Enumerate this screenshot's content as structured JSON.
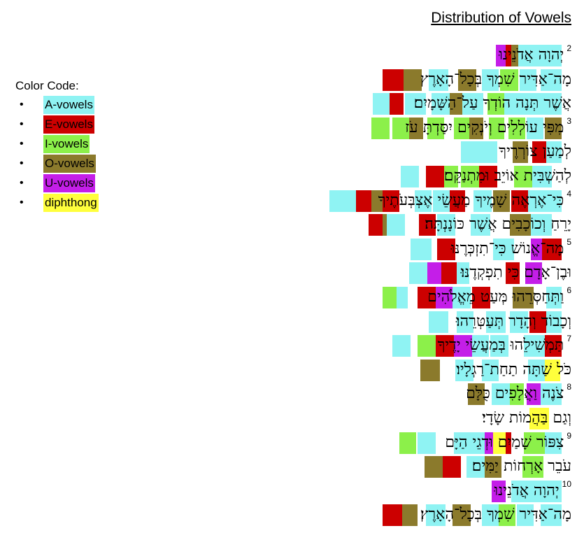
{
  "title": "Distribution of Vowels",
  "legend": {
    "title": "Color Code:",
    "bullet": "•",
    "items": [
      {
        "label": "A-vowels",
        "color": "#8ff3f3"
      },
      {
        "label": "E-vowels",
        "color": "#cc0000"
      },
      {
        "label": "I-vowels",
        "color": "#8cf04a"
      },
      {
        "label": "O-vowels",
        "color": "#8b7a2c"
      },
      {
        "label": "U-vowels",
        "color": "#c41ee8"
      },
      {
        "label": "diphthong",
        "color": "#ffff3c"
      }
    ]
  },
  "verses": [
    {
      "num": "2",
      "text": "יְהוָה אֲדֹנֵינוּ",
      "hl": [
        [
          "A",
          0,
          30
        ],
        [
          "A",
          30,
          38
        ],
        [
          "O",
          62,
          10
        ],
        [
          "E",
          72,
          8
        ],
        [
          "U",
          80,
          14
        ]
      ]
    },
    {
      "num": "",
      "text": "מָה־אַדִּיר שִׁמְךָ בְּכָל־הָאָרֶץ",
      "hl": [
        [
          "A",
          0,
          30
        ],
        [
          "A",
          36,
          24
        ],
        [
          "I",
          62,
          26
        ],
        [
          "A",
          90,
          24
        ],
        [
          "O",
          122,
          26
        ],
        [
          "A",
          162,
          28
        ],
        [
          "O",
          200,
          28
        ],
        [
          "E",
          226,
          30
        ]
      ]
    },
    {
      "num": "",
      "text": "אֲשֶׁר תְּנָה הוֹדְךָ עַל־הַשָּׁמָיִם׃",
      "hl": [
        [
          "A",
          0,
          28
        ],
        [
          "A",
          28,
          34
        ],
        [
          "A",
          62,
          20
        ],
        [
          "I",
          82,
          24
        ],
        [
          "A",
          112,
          30
        ],
        [
          "O",
          142,
          30
        ],
        [
          "A",
          160,
          26
        ],
        [
          "A",
          194,
          30
        ],
        [
          "E",
          226,
          20
        ],
        [
          "A",
          246,
          24
        ]
      ]
    },
    {
      "num": "3",
      "text": "מִפִּי עוֹלְלִים וְיֹנְקִים יִסַּדְתָּ עֹז",
      "hl": [
        [
          "O",
          0,
          24
        ],
        [
          "A",
          26,
          24
        ],
        [
          "I",
          52,
          24
        ],
        [
          "I",
          82,
          22
        ],
        [
          "O",
          112,
          22
        ],
        [
          "I",
          132,
          22
        ],
        [
          "I",
          168,
          24
        ],
        [
          "O",
          198,
          20
        ],
        [
          "I",
          218,
          24
        ],
        [
          "I",
          246,
          26
        ]
      ]
    },
    {
      "num": "",
      "text": "לְמַעַן צוֹרְרֶיךָ",
      "hl": [
        [
          "A",
          0,
          22
        ],
        [
          "E",
          22,
          20
        ],
        [
          "O",
          48,
          22
        ],
        [
          "A",
          92,
          30
        ],
        [
          "A",
          122,
          22
        ]
      ]
    },
    {
      "num": "",
      "text": "לְהַשְׁבִּית אוֹיֵב וּמִתְנַקֵּם׃",
      "hl": [
        [
          "A",
          14,
          28
        ],
        [
          "I",
          42,
          26
        ],
        [
          "E",
          92,
          26
        ],
        [
          "I",
          118,
          26
        ],
        [
          "I",
          148,
          28
        ],
        [
          "E",
          168,
          26
        ],
        [
          "A",
          204,
          26
        ]
      ]
    },
    {
      "num": "4",
      "text": "כִּי־אֶרְאֶה שָׁמֶיךָ מַעֲשֵׂי אֶצְבְּעֹתֶיךָ",
      "hl": [
        [
          "A",
          0,
          28
        ],
        [
          "A",
          28,
          20
        ],
        [
          "E",
          48,
          24
        ],
        [
          "O",
          74,
          24
        ],
        [
          "A",
          100,
          26
        ],
        [
          "E",
          138,
          24
        ],
        [
          "A",
          160,
          24
        ],
        [
          "A",
          186,
          24
        ],
        [
          "E",
          232,
          24
        ],
        [
          "O",
          256,
          22
        ],
        [
          "E",
          272,
          22
        ],
        [
          "A",
          294,
          24
        ],
        [
          "A",
          318,
          14
        ]
      ]
    },
    {
      "num": "",
      "text": "יָרֵחַ וְכוֹכָבִים אֲשֶׁר כּוֹנָנְתָּה׃",
      "hl": [
        [
          "A",
          14,
          30
        ],
        [
          "O",
          44,
          30
        ],
        [
          "A",
          102,
          28
        ],
        [
          "A",
          152,
          26
        ],
        [
          "E",
          180,
          24
        ],
        [
          "A",
          224,
          26
        ],
        [
          "O",
          250,
          20
        ],
        [
          "E",
          256,
          20
        ]
      ]
    },
    {
      "num": "5",
      "text": "מָה־אֱנוֹשׁ כִּי־תִזְכְּרֶנּוּ",
      "hl": [
        [
          "E",
          0,
          28
        ],
        [
          "U",
          28,
          16
        ],
        [
          "A",
          68,
          30
        ],
        [
          "E",
          152,
          26
        ],
        [
          "A",
          186,
          30
        ]
      ]
    },
    {
      "num": "",
      "text": "וּבֶן־אָדָם כִּי תִפְקְדֶנּוּ׃",
      "hl": [
        [
          "U",
          28,
          24
        ],
        [
          "E",
          60,
          20
        ],
        [
          "A",
          132,
          28
        ],
        [
          "E",
          150,
          24
        ],
        [
          "U",
          172,
          20
        ],
        [
          "A",
          192,
          26
        ]
      ]
    },
    {
      "num": "6",
      "text": "וַתְּחַסְּרֵהוּ מְּעַט מֵאֱלֹהִים",
      "hl": [
        [
          "A",
          0,
          22
        ],
        [
          "O",
          40,
          30
        ],
        [
          "E",
          102,
          26
        ],
        [
          "A",
          130,
          28
        ],
        [
          "U",
          156,
          24
        ],
        [
          "E",
          180,
          26
        ],
        [
          "A",
          220,
          22
        ],
        [
          "I",
          236,
          20
        ]
      ]
    },
    {
      "num": "",
      "text": "וְכָבוֹד וְהָדָר תְּעַטְּרֵהוּ׃",
      "hl": [
        [
          "A",
          0,
          22
        ],
        [
          "E",
          22,
          24
        ],
        [
          "A",
          48,
          26
        ],
        [
          "A",
          80,
          28
        ],
        [
          "A",
          126,
          24
        ],
        [
          "A",
          162,
          28
        ]
      ]
    },
    {
      "num": "7",
      "text": "תַּמְשִׁילֵהוּ בְּמַעֲשֵׂי יָדֶיךָ",
      "hl": [
        [
          "E",
          0,
          24
        ],
        [
          "A",
          24,
          30
        ],
        [
          "A",
          76,
          26
        ],
        [
          "A",
          104,
          24
        ],
        [
          "U",
          128,
          28
        ],
        [
          "E",
          154,
          26
        ],
        [
          "I",
          180,
          26
        ],
        [
          "A",
          216,
          26
        ]
      ]
    },
    {
      "num": "",
      "text": "כֹּל שַׁתָּה תַחַת־רַגְלָיו׃",
      "hl": [
        [
          "Y",
          2,
          24
        ],
        [
          "A",
          24,
          24
        ],
        [
          "A",
          90,
          24
        ],
        [
          "A",
          126,
          26
        ],
        [
          "O",
          174,
          28
        ]
      ]
    },
    {
      "num": "8",
      "text": "צֹנֶה וַאֲלָפִים כֻּלָּם",
      "hl": [
        [
          "A",
          0,
          30
        ],
        [
          "U",
          30,
          20
        ],
        [
          "I",
          54,
          22
        ],
        [
          "A",
          74,
          26
        ],
        [
          "O",
          110,
          24
        ]
      ]
    },
    {
      "num": "",
      "text": "וְגַם בַּהֲמוֹת שָׂדָי׃",
      "hl": [
        [
          "Y",
          18,
          28
        ]
      ]
    },
    {
      "num": "9",
      "text": "צִפּוֹר שָׁמַיִם וּדְגֵי הַיָּם",
      "hl": [
        [
          "A",
          0,
          24
        ],
        [
          "I",
          24,
          30
        ],
        [
          "E",
          72,
          24
        ],
        [
          "Y",
          80,
          20
        ],
        [
          "U",
          98,
          12
        ],
        [
          "A",
          110,
          26
        ],
        [
          "A",
          130,
          24
        ],
        [
          "A",
          180,
          26
        ],
        [
          "I",
          208,
          24
        ]
      ]
    },
    {
      "num": "",
      "text": "עֹבֵר אָרְחוֹת יַמִּים׃",
      "hl": [
        [
          "I",
          26,
          30
        ],
        [
          "O",
          86,
          26
        ],
        [
          "A",
          110,
          26
        ],
        [
          "E",
          144,
          26
        ],
        [
          "O",
          170,
          26
        ]
      ]
    },
    {
      "num": "10",
      "text": "יְהוָה אֲדֹנֵינוּ",
      "hl": [
        [
          "A",
          0,
          34
        ],
        [
          "A",
          34,
          38
        ],
        [
          "U",
          80,
          20
        ]
      ]
    },
    {
      "num": "",
      "text": "מָה־אַדִּיר שִׁמְךָ בְּכָל־הָאָרֶץ׃",
      "hl": [
        [
          "A",
          0,
          30
        ],
        [
          "A",
          40,
          24
        ],
        [
          "I",
          66,
          24
        ],
        [
          "A",
          90,
          24
        ],
        [
          "O",
          130,
          26
        ],
        [
          "A",
          166,
          28
        ],
        [
          "O",
          206,
          28
        ],
        [
          "E",
          228,
          28
        ]
      ]
    }
  ]
}
